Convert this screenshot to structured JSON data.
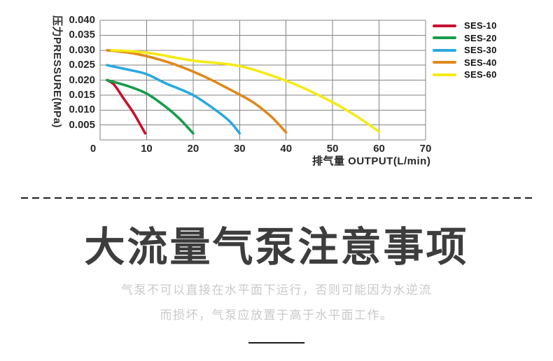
{
  "chart": {
    "y_axis_label": "压力PRESSURE(MPa)",
    "x_axis_label": "排气量 OUTPUT(L/min)",
    "y_ticks": [
      "0.040",
      "0.035",
      "0.030",
      "0.025",
      "0.020",
      "0.015",
      "0.010",
      "0.005"
    ],
    "x_ticks": [
      "0",
      "10",
      "20",
      "30",
      "40",
      "50",
      "60",
      "70"
    ],
    "grid_color": "#828282"
  },
  "chart_data": {
    "type": "line",
    "title": "",
    "xlabel": "排气量 OUTPUT(L/min)",
    "ylabel": "压力PRESSURE(MPa)",
    "xlim": [
      0,
      70
    ],
    "ylim": [
      0,
      0.04
    ],
    "x_tick_step": 10,
    "y_tick_step": 0.005,
    "grid": true,
    "legend_position": "right",
    "series": [
      {
        "name": "SES-10",
        "color": "#c9102e",
        "points": [
          [
            1.5,
            0.02
          ],
          [
            3,
            0.0185
          ],
          [
            5,
            0.014
          ],
          [
            7,
            0.0095
          ],
          [
            8.5,
            0.0055
          ],
          [
            9.7,
            0.0022
          ]
        ]
      },
      {
        "name": "SES-20",
        "color": "#169c4b",
        "points": [
          [
            1.5,
            0.02
          ],
          [
            6,
            0.018
          ],
          [
            10,
            0.0155
          ],
          [
            14,
            0.0112
          ],
          [
            17,
            0.0072
          ],
          [
            20,
            0.0022
          ]
        ]
      },
      {
        "name": "SES-30",
        "color": "#2aa9e0",
        "points": [
          [
            1.5,
            0.025
          ],
          [
            6,
            0.0235
          ],
          [
            10,
            0.022
          ],
          [
            14,
            0.019
          ],
          [
            20,
            0.015
          ],
          [
            25,
            0.0098
          ],
          [
            28,
            0.006
          ],
          [
            30,
            0.0022
          ]
        ]
      },
      {
        "name": "SES-40",
        "color": "#e0891c",
        "points": [
          [
            1.5,
            0.03
          ],
          [
            8,
            0.0287
          ],
          [
            15,
            0.0258
          ],
          [
            22,
            0.0215
          ],
          [
            28,
            0.0168
          ],
          [
            33,
            0.0125
          ],
          [
            37,
            0.0075
          ],
          [
            40,
            0.0025
          ]
        ]
      },
      {
        "name": "SES-60",
        "color": "#f5ea16",
        "points": [
          [
            2.5,
            0.03
          ],
          [
            10,
            0.0292
          ],
          [
            20,
            0.0265
          ],
          [
            30,
            0.0247
          ],
          [
            40,
            0.0198
          ],
          [
            47,
            0.015
          ],
          [
            53,
            0.01
          ],
          [
            57,
            0.006
          ],
          [
            60,
            0.0028
          ]
        ]
      }
    ]
  },
  "section": {
    "title": "大流量气泵注意事项",
    "note_line1": "气泵不可以直接在水平面下运行，否则可能因为水逆流",
    "note_line2": "而损坏，气泵应放置于高于水平面工作。"
  }
}
